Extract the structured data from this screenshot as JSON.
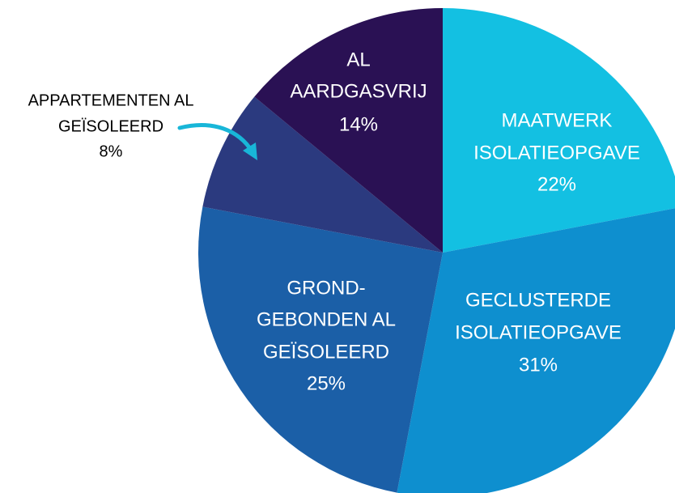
{
  "chart_data": {
    "type": "pie",
    "categories": [
      [
        "MAATWERK",
        "ISOLATIEOPGAVE"
      ],
      [
        "GECLUSTERDE",
        "ISOLATIEOPGAVE"
      ],
      [
        "GROND-",
        "GEBONDEN AL",
        "GEÏSOLEERD"
      ],
      [
        "APPARTEMENTEN AL",
        "GEÏSOLEERD"
      ],
      [
        "AL",
        "AARDGASVRIJ"
      ]
    ],
    "values": [
      22,
      31,
      25,
      8,
      14
    ],
    "value_labels": [
      "22%",
      "31%",
      "25%",
      "8%",
      "14%"
    ],
    "colors": [
      "#13c0e2",
      "#0e8fcf",
      "#1b5fa7",
      "#2b3a7f",
      "#2a1154"
    ]
  }
}
